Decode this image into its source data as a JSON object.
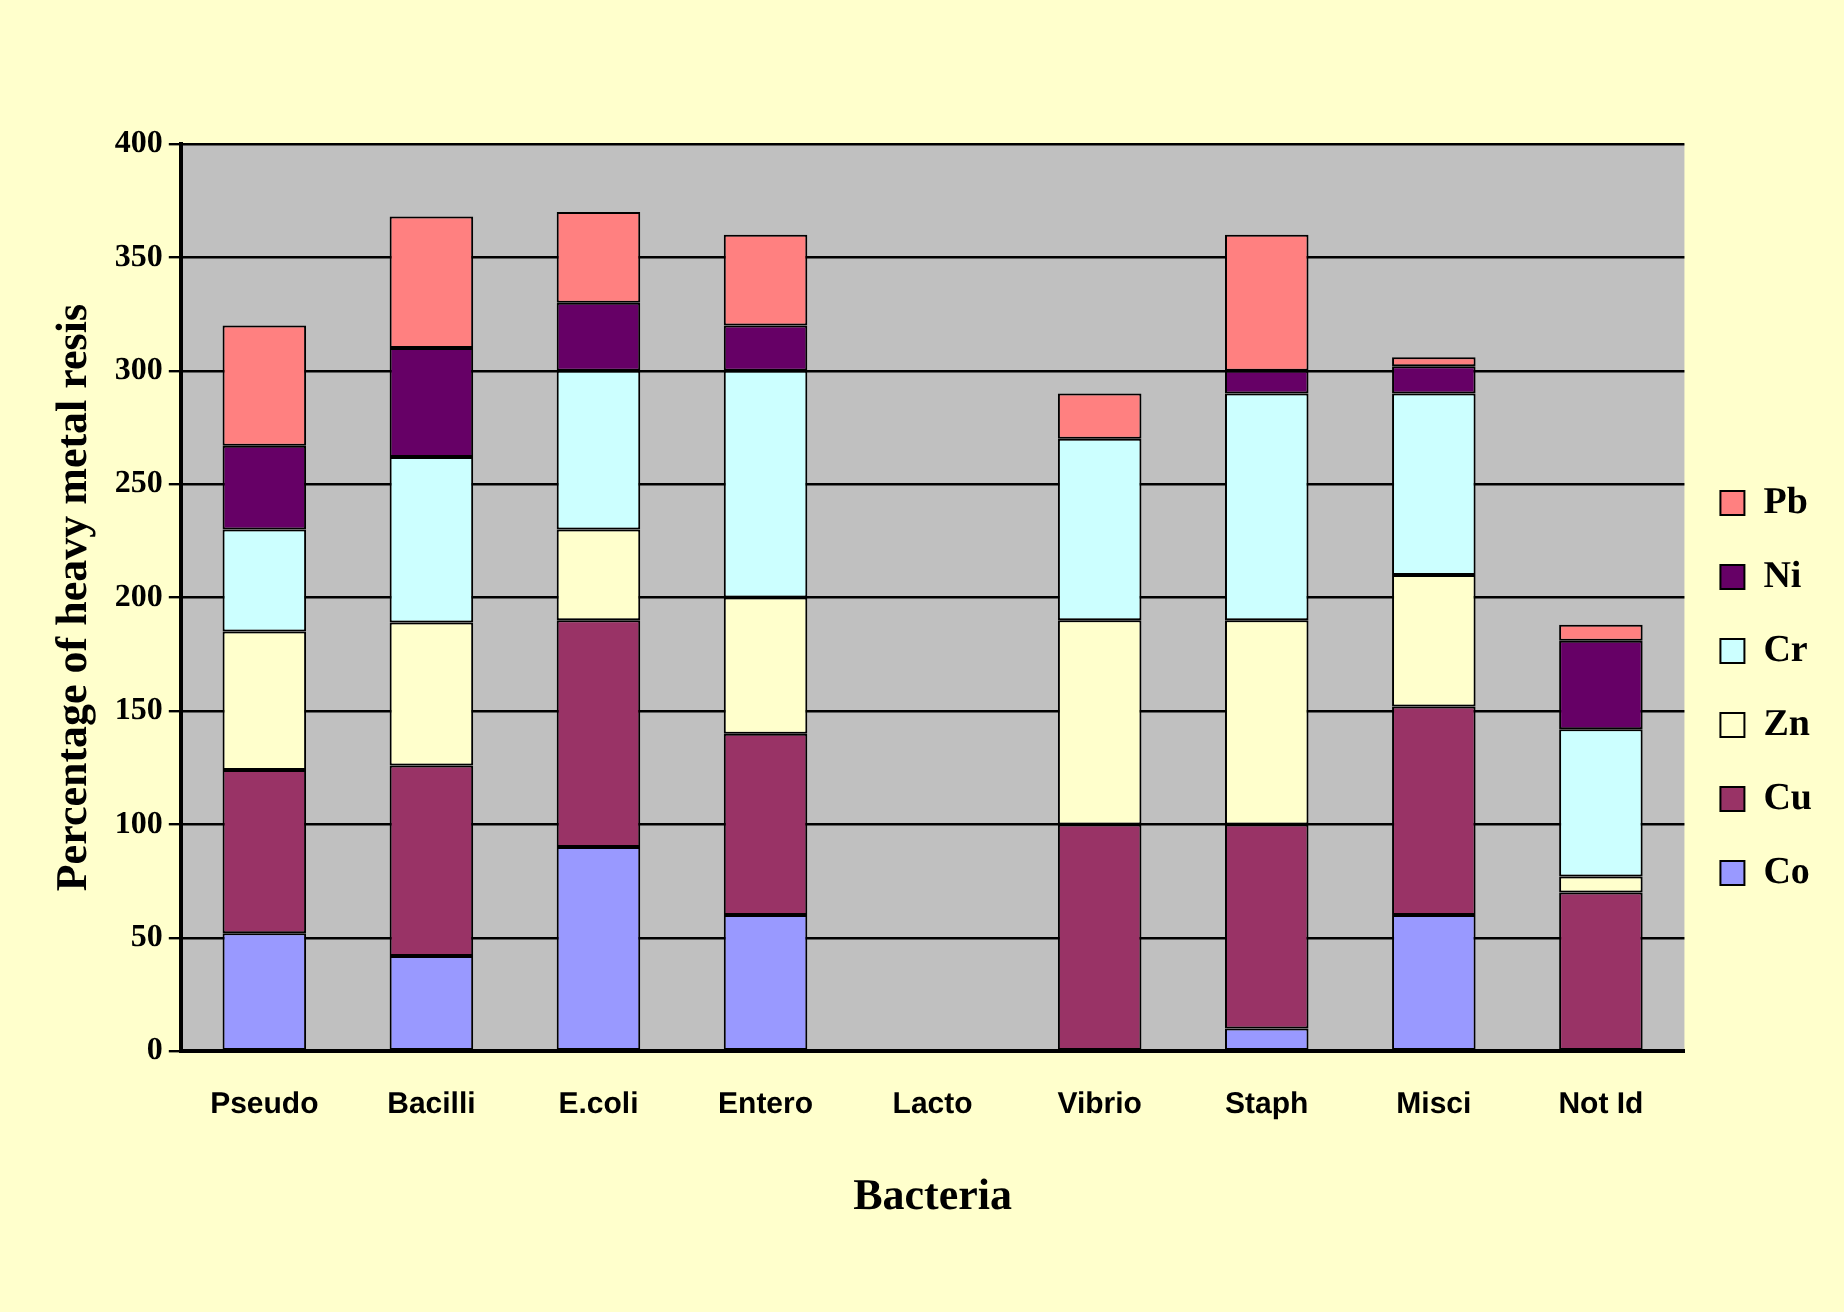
{
  "chart_data": {
    "type": "bar",
    "stacked": true,
    "xlabel": "Bacteria",
    "ylabel": "Percentage of heavy metal resis",
    "categories": [
      "Pseudo",
      "Bacilli",
      "E.coli",
      "Entero",
      "Lacto",
      "Vibrio",
      "Staph",
      "Misci",
      "Not Id"
    ],
    "series": [
      {
        "name": "Co",
        "color": "#9999ff",
        "values": [
          52,
          42,
          90,
          60,
          0,
          0,
          10,
          60,
          0
        ]
      },
      {
        "name": "Cu",
        "color": "#993366",
        "values": [
          72,
          84,
          100,
          80,
          0,
          100,
          90,
          92,
          70
        ]
      },
      {
        "name": "Zn",
        "color": "#ffffcc",
        "values": [
          61,
          63,
          40,
          60,
          0,
          90,
          90,
          58,
          7
        ]
      },
      {
        "name": "Cr",
        "color": "#ccffff",
        "values": [
          45,
          73,
          70,
          100,
          0,
          80,
          100,
          80,
          65
        ]
      },
      {
        "name": "Ni",
        "color": "#660066",
        "values": [
          37,
          48,
          30,
          20,
          0,
          0,
          10,
          12,
          39
        ]
      },
      {
        "name": "Pb",
        "color": "#ff8080",
        "values": [
          53,
          58,
          40,
          40,
          0,
          20,
          60,
          4,
          7
        ]
      }
    ],
    "ylim": [
      0,
      400
    ],
    "yticks": [
      0,
      50,
      100,
      150,
      200,
      250,
      300,
      350,
      400
    ],
    "grid": "y",
    "legend": "right"
  }
}
